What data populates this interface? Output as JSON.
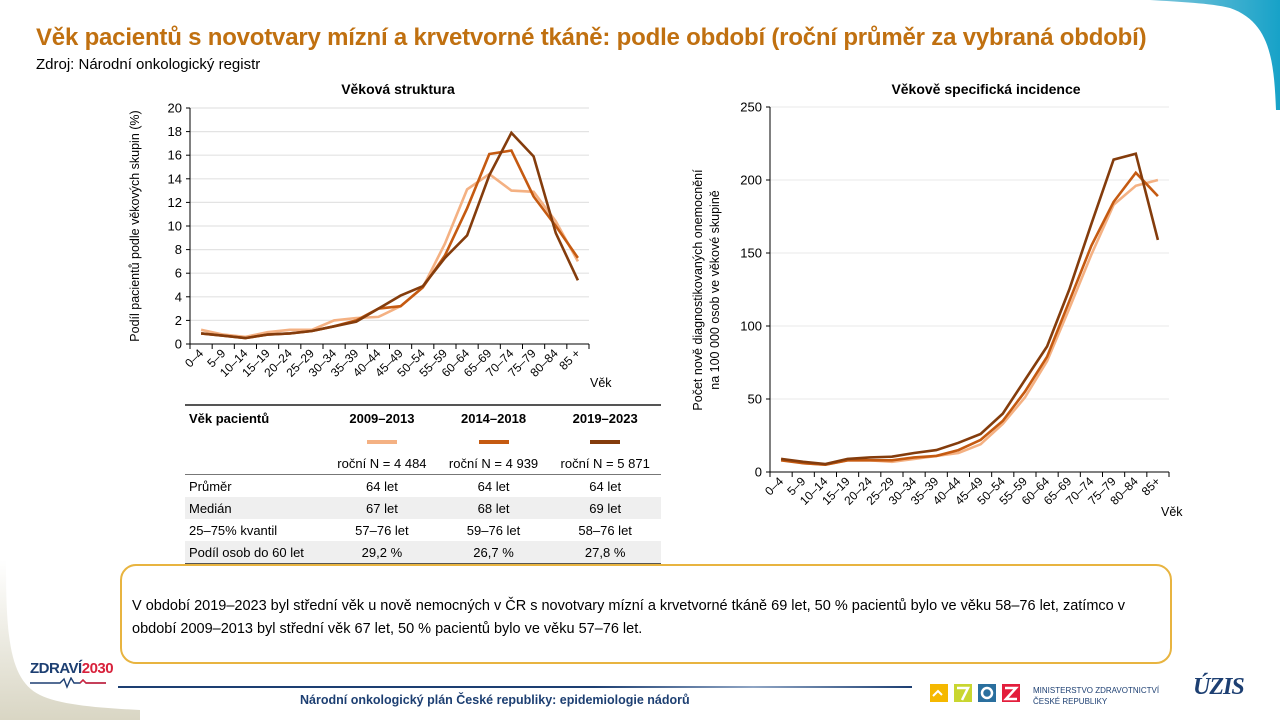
{
  "header": {
    "title": "Věk pacientů s novotvary mízní a krvetvorné tkáně: podle období (roční průměr za vybraná období)",
    "source": "Zdroj: Národní onkologický registr"
  },
  "colors": {
    "title": "#C07010",
    "series_2009_2013": "#F4B183",
    "series_2014_2018": "#C55A11",
    "series_2019_2023": "#843C0C",
    "note_border": "#E8B440",
    "footer_blue": "#1d3f72"
  },
  "chart_data": [
    {
      "type": "line",
      "title": "Věková struktura",
      "xlabel": "Věk",
      "ylabel": "Podíl pacientů podle věkových skupin (%)",
      "ylim": [
        0,
        20
      ],
      "yticks": [
        0,
        2,
        4,
        6,
        8,
        10,
        12,
        14,
        16,
        18,
        20
      ],
      "grid": true,
      "categories": [
        "0–4",
        "5–9",
        "10–14",
        "15–19",
        "20–24",
        "25–29",
        "30–34",
        "35–39",
        "40–44",
        "45–49",
        "50–54",
        "55–59",
        "60–64",
        "65–69",
        "70–74",
        "75–79",
        "80–84",
        "85 +"
      ],
      "series": [
        {
          "name": "2009–2013",
          "color": "#F4B183",
          "values": [
            1.2,
            0.8,
            0.6,
            1.0,
            1.2,
            1.2,
            2.0,
            2.2,
            2.3,
            3.2,
            4.8,
            8.5,
            13.1,
            14.4,
            13.0,
            12.9,
            10.4,
            7.0
          ]
        },
        {
          "name": "2014–2018",
          "color": "#C55A11",
          "values": [
            0.9,
            0.7,
            0.5,
            0.8,
            0.9,
            1.1,
            1.5,
            2.0,
            3.0,
            3.2,
            4.8,
            7.5,
            11.5,
            16.1,
            16.4,
            12.5,
            10.0,
            7.3
          ]
        },
        {
          "name": "2019–2023",
          "color": "#843C0C",
          "values": [
            0.9,
            0.7,
            0.5,
            0.8,
            0.9,
            1.1,
            1.5,
            1.9,
            3.0,
            4.1,
            4.9,
            7.3,
            9.2,
            14.3,
            17.9,
            15.9,
            9.4,
            5.4
          ]
        }
      ]
    },
    {
      "type": "line",
      "title": "Věkově specifická incidence",
      "xlabel": "Věk",
      "ylabel": "Počet nově diagnostikovaných onemocnění na 100 000 osob ve věkové skupině",
      "ylabel_lines": [
        "Počet nově diagnostikovaných onemocnění",
        "na 100 000 osob ve věkové skupině"
      ],
      "ylim": [
        0,
        250
      ],
      "yticks": [
        0,
        50,
        100,
        150,
        200,
        250
      ],
      "grid": true,
      "categories": [
        "0–4",
        "5–9",
        "10–14",
        "15–19",
        "20–24",
        "25–29",
        "30–34",
        "35–39",
        "40–44",
        "45–49",
        "50–54",
        "55–59",
        "60–64",
        "65–69",
        "70–74",
        "75–79",
        "80–84",
        "85+"
      ],
      "series": [
        {
          "name": "2009–2013",
          "color": "#F4B183",
          "values": [
            9,
            6,
            5,
            8,
            8,
            7,
            9,
            11,
            13,
            19,
            33,
            51,
            76,
            112,
            149,
            183,
            196,
            200
          ]
        },
        {
          "name": "2014–2018",
          "color": "#C55A11",
          "values": [
            8,
            6,
            5,
            8,
            8,
            8,
            10,
            11,
            15,
            22,
            35,
            55,
            79,
            117,
            155,
            185,
            205,
            189
          ]
        },
        {
          "name": "2019–2023",
          "color": "#843C0C",
          "values": [
            9,
            7,
            5.5,
            9,
            10,
            10.5,
            13,
            15,
            20,
            26,
            40,
            63,
            86,
            125,
            170,
            214,
            218,
            159
          ]
        }
      ]
    }
  ],
  "table": {
    "header": "Věk pacientů",
    "periods": [
      {
        "label": "2009–2013",
        "color": "#F4B183",
        "n": "roční N = 4 484"
      },
      {
        "label": "2014–2018",
        "color": "#C55A11",
        "n": "roční N = 4 939"
      },
      {
        "label": "2019–2023",
        "color": "#843C0C",
        "n": "roční N = 5 871"
      }
    ],
    "rows": [
      {
        "label": "Průměr",
        "values": [
          "64 let",
          "64 let",
          "64 let"
        ]
      },
      {
        "label": "Medián",
        "values": [
          "67 let",
          "68 let",
          "69 let"
        ]
      },
      {
        "label": "25–75% kvantil",
        "values": [
          "57–76 let",
          "59–76 let",
          "58–76 let"
        ]
      },
      {
        "label": "Podíl osob do 60 let",
        "values": [
          "29,2 %",
          "26,7 %",
          "27,8 %"
        ]
      }
    ]
  },
  "note": "V období 2019–2023 byl střední věk u nově nemocných v ČR s novotvary mízní a krvetvorné tkáně 69 let, 50 % pacientů bylo ve věku 58–76 let, zatímco v období 2009–2013 byl střední věk 67 let, 50 % pacientů bylo ve věku 57–76 let.",
  "footer": {
    "text": "Národní onkologický plán České republiky: epidemiologie nádorů",
    "logo_zdravi_part1": "ZDRAVÍ",
    "logo_zdravi_part2": "2030",
    "ministry_line1": "MINISTERSTVO ZDRAVOTNICTVÍ",
    "ministry_line2": "ČESKÉ REPUBLIKY",
    "uzis": "ÚZIS"
  }
}
